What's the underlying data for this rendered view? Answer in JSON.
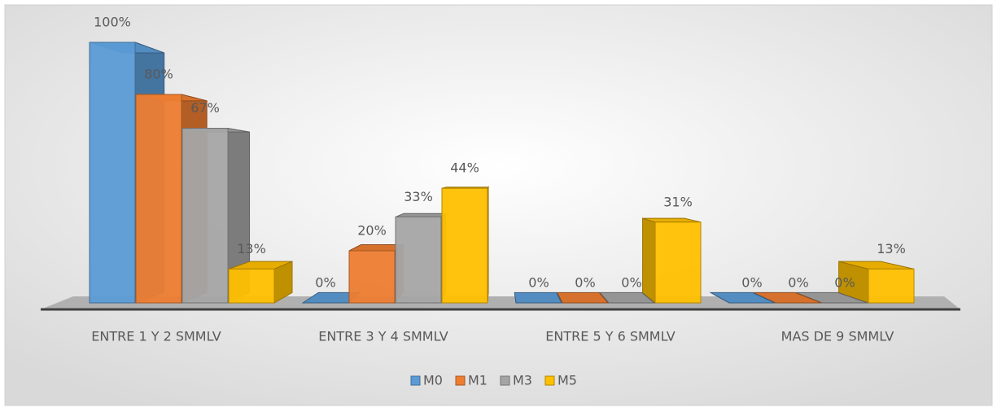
{
  "chart_data": {
    "type": "bar",
    "three_d": true,
    "categories": [
      "ENTRE 1 Y 2 SMMLV",
      "ENTRE 3 Y 4 SMMLV",
      "ENTRE 5 Y 6 SMMLV",
      "MAS DE 9 SMMLV"
    ],
    "series": [
      {
        "name": "M0",
        "color": "#5b9bd5",
        "values": [
          100,
          0,
          0,
          0
        ],
        "value_labels": [
          "100%",
          "0%",
          "0%",
          "0%"
        ]
      },
      {
        "name": "M1",
        "color": "#ed7d31",
        "values": [
          80,
          20,
          0,
          0
        ],
        "value_labels": [
          "80%",
          "20%",
          "0%",
          "0%"
        ]
      },
      {
        "name": "M3",
        "color": "#a5a5a5",
        "values": [
          67,
          33,
          0,
          0
        ],
        "value_labels": [
          "67%",
          "33%",
          "0%",
          "0%"
        ]
      },
      {
        "name": "M5",
        "color": "#ffc000",
        "values": [
          13,
          44,
          31,
          13
        ],
        "value_labels": [
          "13%",
          "44%",
          "31%",
          "13%"
        ]
      }
    ],
    "legend": "bottom"
  }
}
